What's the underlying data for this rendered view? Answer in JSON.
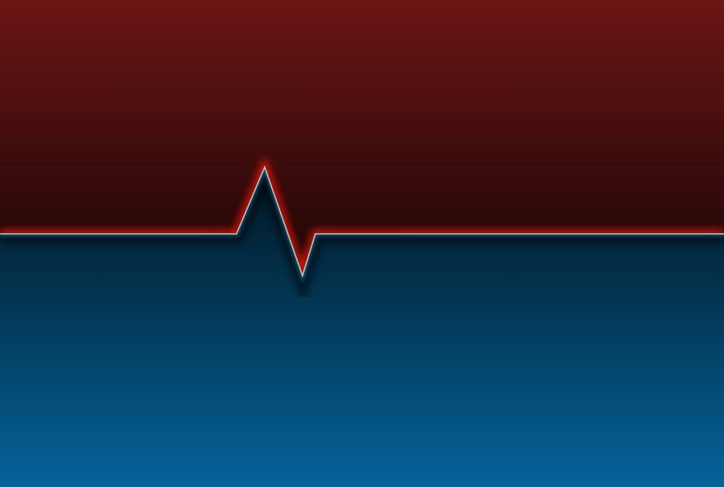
{
  "wallpaper": {
    "top_colors": [
      "#6b1615",
      "#1c0506"
    ],
    "bottom_colors": [
      "#021520",
      "#04639a"
    ],
    "line_color": "#c8c2b8",
    "upper_glow_color": "#ff1a0f",
    "lower_glow_color": "#1aa3d8"
  }
}
